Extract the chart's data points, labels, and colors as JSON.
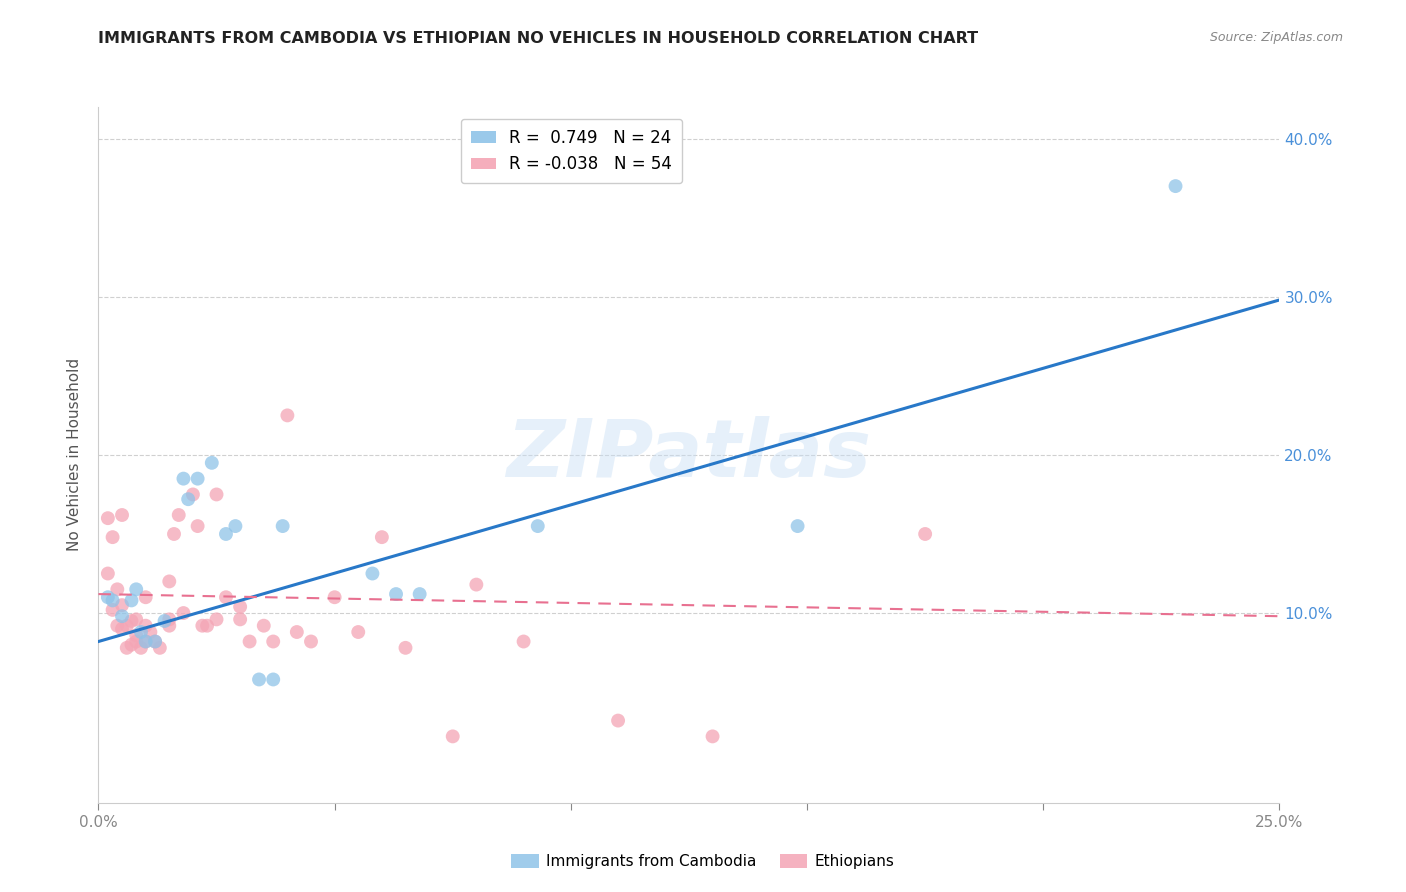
{
  "title": "IMMIGRANTS FROM CAMBODIA VS ETHIOPIAN NO VEHICLES IN HOUSEHOLD CORRELATION CHART",
  "source": "Source: ZipAtlas.com",
  "ylabel": "No Vehicles in Household",
  "watermark": "ZIPatlas",
  "xlim": [
    0.0,
    0.25
  ],
  "ylim": [
    -0.02,
    0.42
  ],
  "xticks": [
    0.0,
    0.05,
    0.1,
    0.15,
    0.2,
    0.25
  ],
  "yticks": [
    0.1,
    0.2,
    0.3,
    0.4
  ],
  "ytick_labels_right": [
    "10.0%",
    "20.0%",
    "30.0%",
    "40.0%"
  ],
  "xtick_labels": [
    "0.0%",
    "",
    "",
    "",
    "",
    "25.0%"
  ],
  "legend_entries": [
    {
      "label": "R =  0.749   N = 24",
      "color": "#8fc3e8"
    },
    {
      "label": "R = -0.038   N = 54",
      "color": "#f4a5b5"
    }
  ],
  "cambodia_points": [
    [
      0.002,
      0.11
    ],
    [
      0.003,
      0.108
    ],
    [
      0.005,
      0.098
    ],
    [
      0.007,
      0.108
    ],
    [
      0.008,
      0.115
    ],
    [
      0.009,
      0.088
    ],
    [
      0.01,
      0.082
    ],
    [
      0.012,
      0.082
    ],
    [
      0.014,
      0.095
    ],
    [
      0.018,
      0.185
    ],
    [
      0.019,
      0.172
    ],
    [
      0.021,
      0.185
    ],
    [
      0.024,
      0.195
    ],
    [
      0.027,
      0.15
    ],
    [
      0.029,
      0.155
    ],
    [
      0.034,
      0.058
    ],
    [
      0.037,
      0.058
    ],
    [
      0.039,
      0.155
    ],
    [
      0.058,
      0.125
    ],
    [
      0.063,
      0.112
    ],
    [
      0.068,
      0.112
    ],
    [
      0.093,
      0.155
    ],
    [
      0.148,
      0.155
    ],
    [
      0.228,
      0.37
    ]
  ],
  "ethiopian_points": [
    [
      0.002,
      0.16
    ],
    [
      0.002,
      0.125
    ],
    [
      0.003,
      0.148
    ],
    [
      0.003,
      0.102
    ],
    [
      0.004,
      0.115
    ],
    [
      0.004,
      0.092
    ],
    [
      0.005,
      0.105
    ],
    [
      0.005,
      0.162
    ],
    [
      0.005,
      0.09
    ],
    [
      0.006,
      0.078
    ],
    [
      0.006,
      0.092
    ],
    [
      0.007,
      0.08
    ],
    [
      0.007,
      0.095
    ],
    [
      0.008,
      0.082
    ],
    [
      0.008,
      0.086
    ],
    [
      0.008,
      0.096
    ],
    [
      0.009,
      0.078
    ],
    [
      0.01,
      0.082
    ],
    [
      0.01,
      0.092
    ],
    [
      0.01,
      0.11
    ],
    [
      0.011,
      0.088
    ],
    [
      0.012,
      0.082
    ],
    [
      0.013,
      0.078
    ],
    [
      0.015,
      0.092
    ],
    [
      0.015,
      0.096
    ],
    [
      0.015,
      0.12
    ],
    [
      0.016,
      0.15
    ],
    [
      0.017,
      0.162
    ],
    [
      0.018,
      0.1
    ],
    [
      0.02,
      0.175
    ],
    [
      0.021,
      0.155
    ],
    [
      0.022,
      0.092
    ],
    [
      0.023,
      0.092
    ],
    [
      0.025,
      0.096
    ],
    [
      0.025,
      0.175
    ],
    [
      0.027,
      0.11
    ],
    [
      0.03,
      0.096
    ],
    [
      0.03,
      0.104
    ],
    [
      0.032,
      0.082
    ],
    [
      0.035,
      0.092
    ],
    [
      0.037,
      0.082
    ],
    [
      0.04,
      0.225
    ],
    [
      0.042,
      0.088
    ],
    [
      0.045,
      0.082
    ],
    [
      0.05,
      0.11
    ],
    [
      0.055,
      0.088
    ],
    [
      0.06,
      0.148
    ],
    [
      0.065,
      0.078
    ],
    [
      0.075,
      0.022
    ],
    [
      0.08,
      0.118
    ],
    [
      0.09,
      0.082
    ],
    [
      0.11,
      0.032
    ],
    [
      0.13,
      0.022
    ],
    [
      0.175,
      0.15
    ]
  ],
  "cambodia_line": {
    "x0": 0.0,
    "y0": 0.082,
    "x1": 0.25,
    "y1": 0.298
  },
  "ethiopian_line": {
    "x0": 0.0,
    "y0": 0.112,
    "x1": 0.25,
    "y1": 0.098
  },
  "cambodia_color": "#8fc3e8",
  "ethiopian_color": "#f4a5b5",
  "cambodia_line_color": "#2878c8",
  "ethiopian_line_color": "#e87090",
  "bg_color": "#ffffff",
  "grid_color": "#d0d0d0",
  "title_color": "#222222",
  "right_tick_color": "#4a90d9",
  "marker_size": 100
}
